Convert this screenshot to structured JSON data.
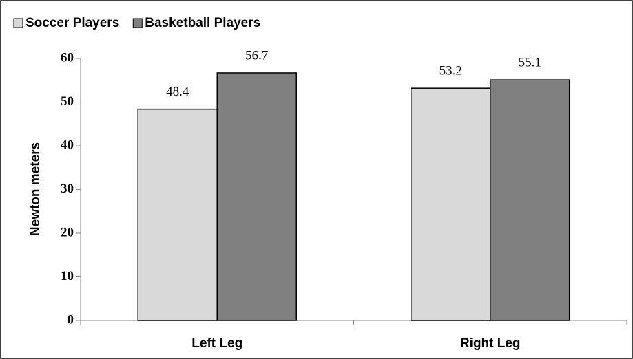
{
  "chart_data": {
    "type": "bar",
    "categories": [
      "Left Leg",
      "Right Leg"
    ],
    "series": [
      {
        "name": "Soccer Players",
        "color": "#d9d9d9",
        "values": [
          48.4,
          53.2
        ]
      },
      {
        "name": "Basketball Players",
        "color": "#808080",
        "values": [
          56.7,
          55.1
        ]
      }
    ],
    "ylabel": "Newton meters",
    "ylim": [
      0,
      60
    ],
    "yticks": [
      0,
      10,
      20,
      30,
      40,
      50,
      60
    ],
    "grid": false,
    "legend": "top-left"
  }
}
